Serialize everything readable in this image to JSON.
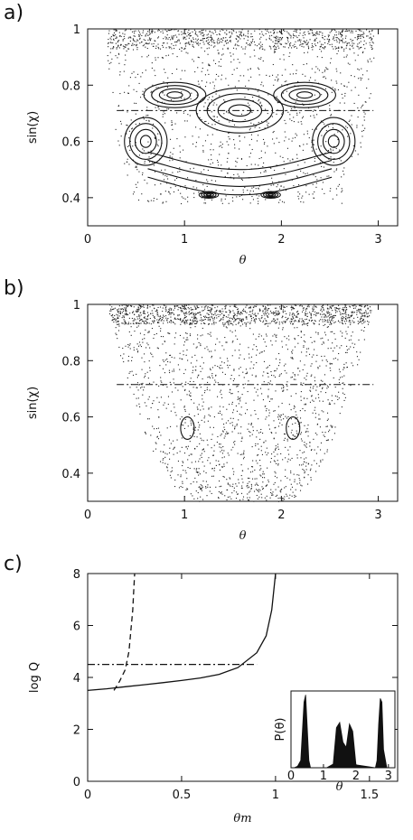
{
  "panels": {
    "a": {
      "label": "a)"
    },
    "b": {
      "label": "b)"
    },
    "c": {
      "label": "c)"
    }
  },
  "chart_data": [
    {
      "id": "a",
      "type": "scatter",
      "xlabel": "θ",
      "ylabel": "sin(χ)",
      "xlim": [
        0,
        3.2
      ],
      "ylim": [
        0.3,
        1.0
      ],
      "xticks": [
        0,
        1,
        2,
        3
      ],
      "yticks": [
        0.4,
        0.6,
        0.8,
        1
      ],
      "annotations": {
        "dash_dot_line_y": 0.71
      },
      "islands": [
        {
          "x": 1.571,
          "y": 0.71,
          "rx_max": 0.45,
          "ry_max": 0.08
        },
        {
          "x": 0.9,
          "y": 0.765,
          "rx_max": 0.32,
          "ry_max": 0.045
        },
        {
          "x": 2.24,
          "y": 0.765,
          "rx_max": 0.32,
          "ry_max": 0.045
        },
        {
          "x": 0.6,
          "y": 0.6,
          "rx_max": 0.22,
          "ry_max": 0.085
        },
        {
          "x": 2.54,
          "y": 0.6,
          "rx_max": 0.22,
          "ry_max": 0.085
        },
        {
          "x": 1.25,
          "y": 0.41,
          "rx_max": 0.1,
          "ry_max": 0.012
        },
        {
          "x": 1.89,
          "y": 0.41,
          "rx_max": 0.1,
          "ry_max": 0.012
        }
      ]
    },
    {
      "id": "b",
      "type": "scatter",
      "xlabel": "θ",
      "ylabel": "sin(χ)",
      "xlim": [
        0,
        3.2
      ],
      "ylim": [
        0.3,
        1.0
      ],
      "xticks": [
        0,
        1,
        2,
        3
      ],
      "yticks": [
        0.4,
        0.6,
        0.8,
        1
      ],
      "annotations": {
        "dash_dot_line_y": 0.715
      },
      "islands": [
        {
          "x": 1.03,
          "y": 0.56,
          "rx_max": 0.07,
          "ry_max": 0.04
        },
        {
          "x": 2.12,
          "y": 0.56,
          "rx_max": 0.07,
          "ry_max": 0.04
        }
      ]
    },
    {
      "id": "c",
      "type": "line",
      "xlabel": "θm",
      "ylabel": "log Q",
      "xlim": [
        0,
        1.65
      ],
      "ylim": [
        0,
        8
      ],
      "xticks": [
        0,
        0.5,
        1,
        1.5
      ],
      "yticks": [
        0,
        2,
        4,
        6,
        8
      ],
      "series": [
        {
          "style": "solid",
          "x": [
            0,
            0.1,
            0.2,
            0.3,
            0.4,
            0.5,
            0.6,
            0.7,
            0.8,
            0.9,
            0.95,
            0.98,
            1.0
          ],
          "y": [
            3.5,
            3.56,
            3.64,
            3.72,
            3.8,
            3.88,
            3.98,
            4.12,
            4.38,
            4.95,
            5.6,
            6.6,
            8.0
          ]
        },
        {
          "style": "dashed",
          "x": [
            0.14,
            0.17,
            0.2,
            0.22,
            0.23,
            0.24,
            0.245,
            0.25
          ],
          "y": [
            3.5,
            3.85,
            4.3,
            5.0,
            5.8,
            6.6,
            7.3,
            8.0
          ]
        },
        {
          "style": "dash-dot",
          "x": [
            0,
            0.9
          ],
          "y": [
            4.5,
            4.5
          ]
        }
      ],
      "inset": {
        "xlabel": "θ",
        "ylabel": "P(θ)",
        "xticks": [
          0,
          1,
          2,
          3
        ],
        "x": [
          0,
          0.1,
          0.2,
          0.3,
          0.35,
          0.4,
          0.45,
          0.5,
          0.55,
          0.6,
          1.1,
          1.3,
          1.4,
          1.5,
          1.6,
          1.7,
          1.8,
          1.9,
          2.0,
          2.6,
          2.65,
          2.7,
          2.75,
          2.8,
          2.85,
          2.95,
          3.14
        ],
        "y": [
          0,
          0,
          0.02,
          0.1,
          0.5,
          0.9,
          1.0,
          0.55,
          0.1,
          0,
          0,
          0.05,
          0.55,
          0.62,
          0.35,
          0.28,
          0.6,
          0.5,
          0.04,
          0,
          0.1,
          0.6,
          0.95,
          0.9,
          0.25,
          0,
          0
        ]
      }
    }
  ]
}
